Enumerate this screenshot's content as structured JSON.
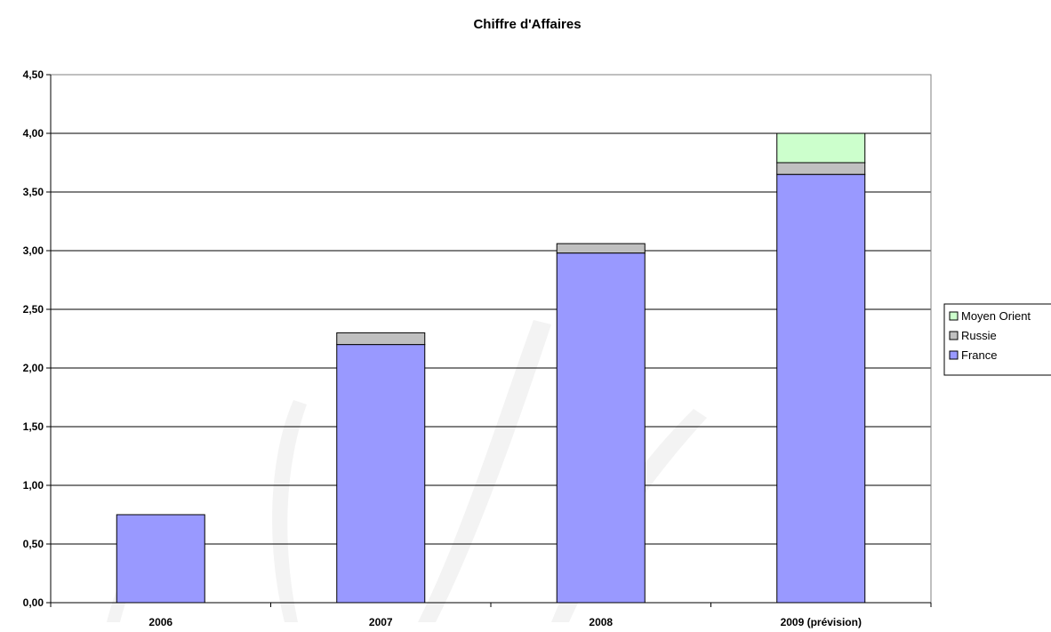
{
  "chart_data": {
    "type": "bar",
    "stacked": true,
    "title": "Chiffre d'Affaires",
    "xlabel": "",
    "ylabel": "",
    "categories": [
      "2006",
      "2007",
      "2008",
      "2009 (prévision)"
    ],
    "series": [
      {
        "name": "France",
        "color": "#9999ff",
        "values": [
          0.75,
          2.2,
          2.98,
          3.65
        ]
      },
      {
        "name": "Russie",
        "color": "#c0c0c0",
        "values": [
          0.0,
          0.1,
          0.08,
          0.1
        ]
      },
      {
        "name": "Moyen Orient",
        "color": "#ccffcc",
        "values": [
          0.0,
          0.0,
          0.0,
          0.25
        ]
      }
    ],
    "ylim": [
      0,
      4.5
    ],
    "yticks": [
      "0,00",
      "0,50",
      "1,00",
      "1,50",
      "2,00",
      "2,50",
      "3,00",
      "3,50",
      "4,00",
      "4,50"
    ],
    "ytick_values": [
      0,
      0.5,
      1,
      1.5,
      2,
      2.5,
      3,
      3.5,
      4,
      4.5
    ],
    "grid": true,
    "legend_position": "right",
    "legend_order": [
      "Moyen Orient",
      "Russie",
      "France"
    ]
  }
}
